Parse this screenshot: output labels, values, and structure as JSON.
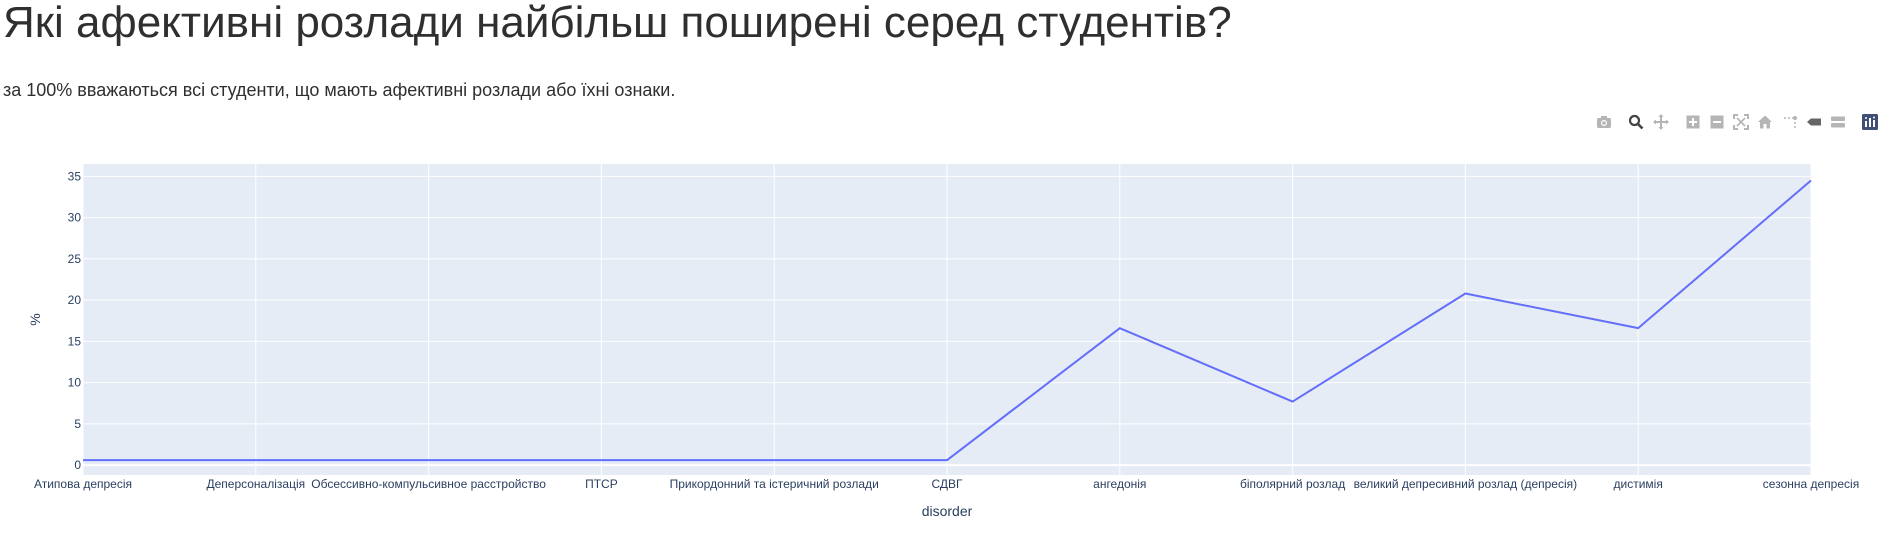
{
  "page": {
    "title": "Які афективні розлади найбільш поширені серед студентів?",
    "subtitle": "за 100% вважаються всі студенти, що мають афективні розлади або їхні ознаки."
  },
  "modebar": {
    "buttons": [
      {
        "name": "camera-icon",
        "color": "#b5b5b5"
      },
      {
        "name": "zoom-icon",
        "color": "#444444"
      },
      {
        "name": "pan-icon",
        "color": "#b5b5b5"
      },
      {
        "name": "zoom-in-icon",
        "color": "#b5b5b5"
      },
      {
        "name": "zoom-out-icon",
        "color": "#b5b5b5"
      },
      {
        "name": "autoscale-icon",
        "color": "#b5b5b5"
      },
      {
        "name": "home-icon",
        "color": "#b5b5b5"
      },
      {
        "name": "spike-lines-icon",
        "color": "#b5b5b5"
      },
      {
        "name": "hover-closest-icon",
        "color": "#666666"
      },
      {
        "name": "hover-compare-icon",
        "color": "#b5b5b5"
      },
      {
        "name": "plotly-logo-icon",
        "color": "#3f4f75"
      }
    ]
  },
  "chart_data": {
    "type": "line",
    "title": "",
    "xlabel": "disorder",
    "ylabel": "%",
    "categories": [
      "Атипова депресія",
      "Деперсоналізація",
      "Обсессивно-компульсивное расстройство",
      "ПТСР",
      "Прикордонний та істеричний розлади",
      "СДВГ",
      "ангедонія",
      "біполярний розлад",
      "великий депресивний розлад (депресія)",
      "дистимія",
      "сезонна депресія"
    ],
    "series": [
      {
        "values": [
          0.6,
          0.6,
          0.6,
          0.6,
          0.6,
          0.6,
          16.6,
          7.7,
          20.8,
          16.6,
          34.5
        ],
        "color": "#636efa"
      }
    ],
    "ylim": [
      -1.2,
      36.5
    ],
    "yticks": [
      0,
      5,
      10,
      15,
      20,
      25,
      30,
      35
    ],
    "grid": true,
    "plot_bg": "#e5ecf6",
    "grid_color": "#ffffff"
  }
}
